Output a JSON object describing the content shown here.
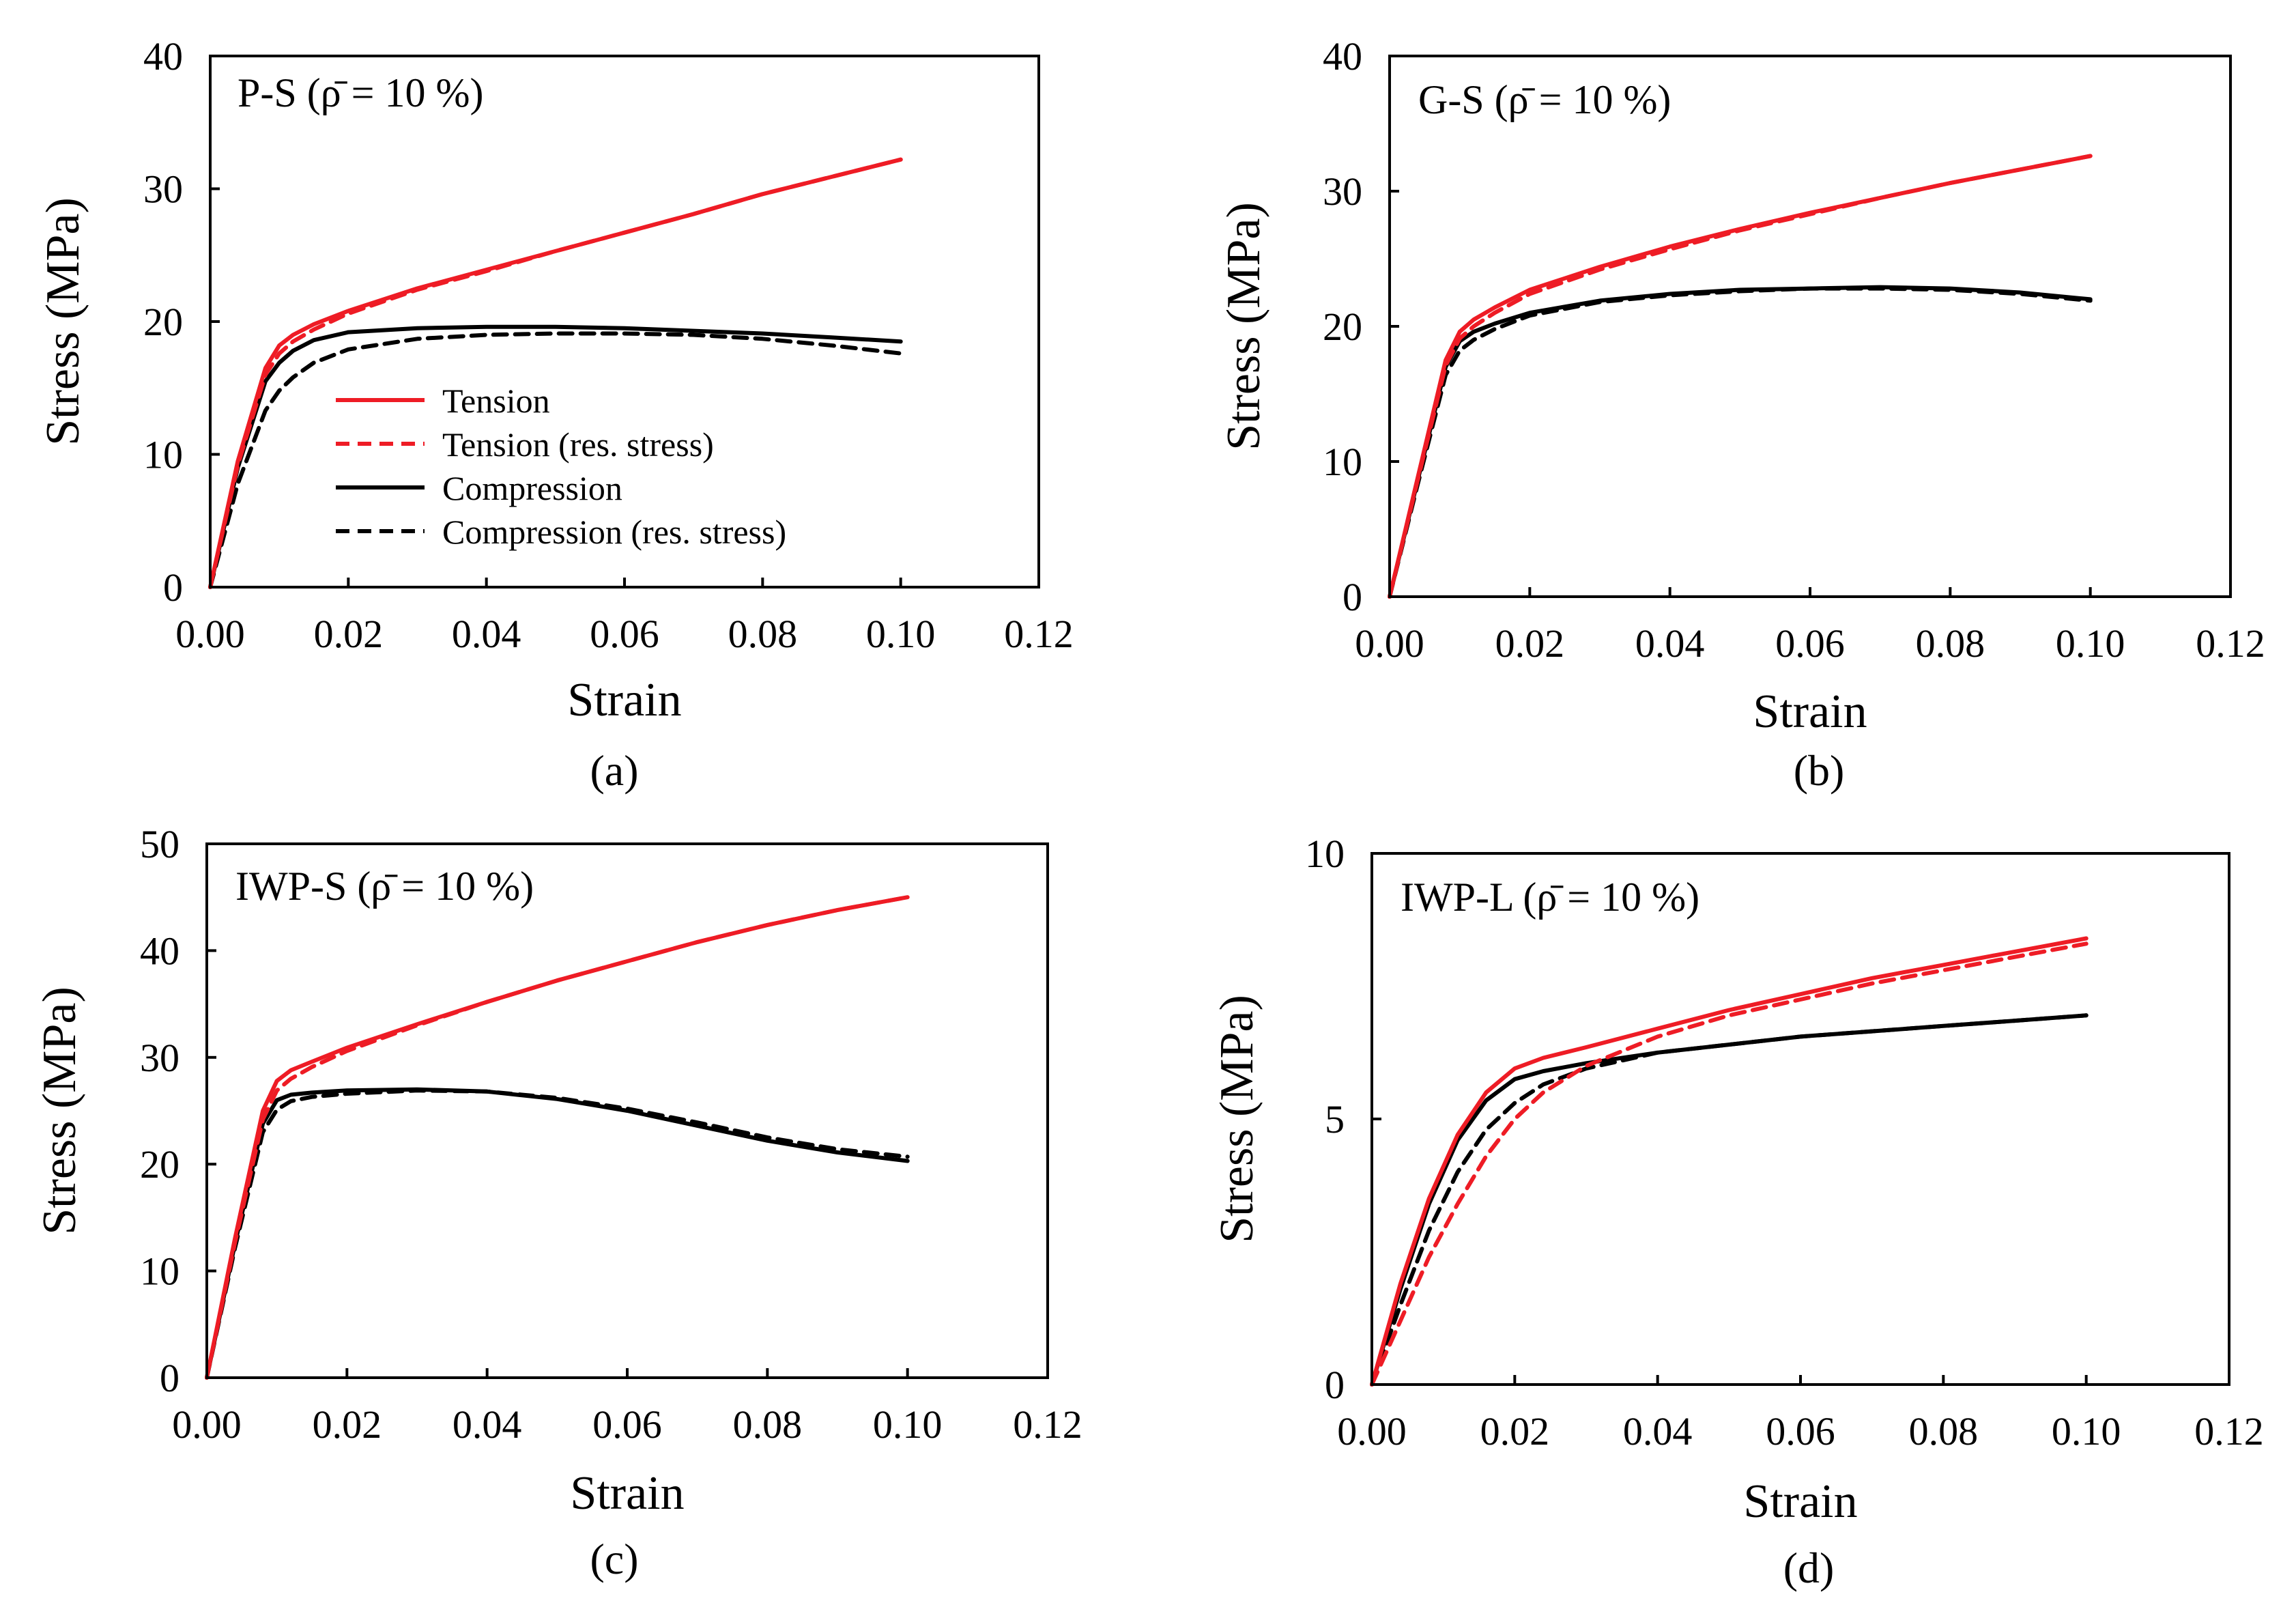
{
  "colors": {
    "tension": "#ee1c25",
    "compression": "#000000"
  },
  "legend_labels": [
    "Tension",
    "Tension (res. stress)",
    "Compression",
    "Compression (res. stress)"
  ],
  "chart_data": [
    {
      "type": "line",
      "panel": "a",
      "caption": "(a)",
      "title": "P-S (ρ̄ = 10 %)",
      "xlabel": "Strain",
      "ylabel": "Stress (MPa)",
      "xlim": [
        0,
        0.12
      ],
      "ylim": [
        0,
        40
      ],
      "xticks": [
        "0.00",
        "0.02",
        "0.04",
        "0.06",
        "0.08",
        "0.10",
        "0.12"
      ],
      "yticks": [
        "0",
        "10",
        "20",
        "30",
        "40"
      ],
      "legend": true,
      "legend_position": "center-left",
      "series": [
        {
          "name": "Tension",
          "color": "#ee1c25",
          "dash": "solid",
          "x": [
            0,
            0.004,
            0.008,
            0.01,
            0.012,
            0.015,
            0.02,
            0.03,
            0.04,
            0.05,
            0.06,
            0.07,
            0.08,
            0.09,
            0.1
          ],
          "y": [
            0,
            9.5,
            16.5,
            18.2,
            19.0,
            19.8,
            20.8,
            22.5,
            23.9,
            25.3,
            26.7,
            28.1,
            29.6,
            30.9,
            32.2
          ]
        },
        {
          "name": "Tension (res. stress)",
          "color": "#ee1c25",
          "dash": "dashed",
          "x": [
            0,
            0.004,
            0.008,
            0.01,
            0.012,
            0.015,
            0.02,
            0.03,
            0.04,
            0.05,
            0.06,
            0.07,
            0.08,
            0.09,
            0.1
          ],
          "y": [
            0,
            9.2,
            16.0,
            17.6,
            18.5,
            19.4,
            20.6,
            22.4,
            23.8,
            25.3,
            26.7,
            28.1,
            29.6,
            30.9,
            32.2
          ]
        },
        {
          "name": "Compression",
          "color": "#000000",
          "dash": "solid",
          "x": [
            0,
            0.004,
            0.008,
            0.01,
            0.012,
            0.015,
            0.02,
            0.03,
            0.04,
            0.05,
            0.06,
            0.07,
            0.08,
            0.09,
            0.1
          ],
          "y": [
            0,
            9.0,
            15.5,
            16.9,
            17.8,
            18.6,
            19.2,
            19.5,
            19.6,
            19.6,
            19.5,
            19.3,
            19.1,
            18.8,
            18.5
          ]
        },
        {
          "name": "Compression (res. stress)",
          "color": "#000000",
          "dash": "dashed",
          "x": [
            0,
            0.004,
            0.008,
            0.01,
            0.012,
            0.015,
            0.02,
            0.03,
            0.04,
            0.05,
            0.06,
            0.07,
            0.08,
            0.09,
            0.1
          ],
          "y": [
            0,
            7.8,
            13.3,
            14.8,
            15.8,
            16.9,
            17.9,
            18.7,
            19.0,
            19.1,
            19.1,
            19.0,
            18.7,
            18.2,
            17.6
          ]
        }
      ]
    },
    {
      "type": "line",
      "panel": "b",
      "caption": "(b)",
      "title": "G-S (ρ̄ = 10 %)",
      "xlabel": "Strain",
      "ylabel": "Stress (MPa)",
      "xlim": [
        0,
        0.12
      ],
      "ylim": [
        0,
        40
      ],
      "xticks": [
        "0.00",
        "0.02",
        "0.04",
        "0.06",
        "0.08",
        "0.10",
        "0.12"
      ],
      "yticks": [
        "0",
        "10",
        "20",
        "30",
        "40"
      ],
      "legend": false,
      "series": [
        {
          "name": "Tension",
          "color": "#ee1c25",
          "dash": "solid",
          "x": [
            0,
            0.004,
            0.008,
            0.01,
            0.012,
            0.015,
            0.02,
            0.03,
            0.04,
            0.05,
            0.06,
            0.07,
            0.08,
            0.09,
            0.1
          ],
          "y": [
            0,
            8.8,
            17.5,
            19.6,
            20.5,
            21.4,
            22.7,
            24.4,
            25.9,
            27.2,
            28.4,
            29.5,
            30.6,
            31.6,
            32.6
          ]
        },
        {
          "name": "Tension (res. stress)",
          "color": "#ee1c25",
          "dash": "dashed",
          "x": [
            0,
            0.004,
            0.008,
            0.01,
            0.012,
            0.015,
            0.02,
            0.03,
            0.04,
            0.05,
            0.06,
            0.07,
            0.08,
            0.09,
            0.1
          ],
          "y": [
            0,
            8.6,
            17.1,
            19.1,
            20.0,
            21.0,
            22.4,
            24.2,
            25.7,
            27.1,
            28.3,
            29.5,
            30.6,
            31.6,
            32.6
          ]
        },
        {
          "name": "Compression",
          "color": "#000000",
          "dash": "solid",
          "x": [
            0,
            0.004,
            0.008,
            0.01,
            0.012,
            0.015,
            0.02,
            0.03,
            0.04,
            0.05,
            0.06,
            0.07,
            0.08,
            0.09,
            0.1
          ],
          "y": [
            0,
            8.6,
            17.0,
            18.9,
            19.6,
            20.2,
            21.0,
            21.9,
            22.4,
            22.7,
            22.8,
            22.9,
            22.8,
            22.5,
            22.0
          ]
        },
        {
          "name": "Compression (res. stress)",
          "color": "#000000",
          "dash": "dashed",
          "x": [
            0,
            0.004,
            0.008,
            0.01,
            0.012,
            0.015,
            0.02,
            0.03,
            0.04,
            0.05,
            0.06,
            0.07,
            0.08,
            0.09,
            0.1
          ],
          "y": [
            0,
            8.3,
            16.4,
            18.2,
            19.0,
            19.8,
            20.8,
            21.8,
            22.3,
            22.6,
            22.8,
            22.8,
            22.7,
            22.4,
            21.9
          ]
        }
      ]
    },
    {
      "type": "line",
      "panel": "c",
      "caption": "(c)",
      "title": "IWP-S (ρ̄ = 10 %)",
      "xlabel": "Strain",
      "ylabel": "Stress (MPa)",
      "xlim": [
        0,
        0.12
      ],
      "ylim": [
        0,
        50
      ],
      "xticks": [
        "0.00",
        "0.02",
        "0.04",
        "0.06",
        "0.08",
        "0.10",
        "0.12"
      ],
      "yticks": [
        "0",
        "10",
        "20",
        "30",
        "40",
        "50"
      ],
      "legend": false,
      "series": [
        {
          "name": "Tension",
          "color": "#ee1c25",
          "dash": "solid",
          "x": [
            0,
            0.004,
            0.008,
            0.01,
            0.012,
            0.015,
            0.02,
            0.03,
            0.04,
            0.05,
            0.06,
            0.07,
            0.08,
            0.09,
            0.1
          ],
          "y": [
            0,
            13.0,
            25.0,
            27.8,
            28.8,
            29.6,
            30.9,
            33.1,
            35.2,
            37.2,
            39.0,
            40.8,
            42.4,
            43.8,
            45.0
          ]
        },
        {
          "name": "Tension (res. stress)",
          "color": "#ee1c25",
          "dash": "dashed",
          "x": [
            0,
            0.004,
            0.008,
            0.01,
            0.012,
            0.015,
            0.02,
            0.03,
            0.04,
            0.05,
            0.06,
            0.07,
            0.08,
            0.09,
            0.1
          ],
          "y": [
            0,
            12.6,
            24.2,
            26.9,
            28.0,
            29.1,
            30.6,
            33.0,
            35.2,
            37.2,
            39.0,
            40.8,
            42.4,
            43.8,
            45.0
          ]
        },
        {
          "name": "Compression",
          "color": "#000000",
          "dash": "solid",
          "x": [
            0,
            0.004,
            0.008,
            0.01,
            0.012,
            0.015,
            0.02,
            0.03,
            0.04,
            0.05,
            0.06,
            0.07,
            0.08,
            0.09,
            0.1
          ],
          "y": [
            0,
            12.5,
            23.8,
            26.0,
            26.5,
            26.7,
            26.9,
            27.0,
            26.8,
            26.1,
            25.0,
            23.6,
            22.2,
            21.1,
            20.3
          ]
        },
        {
          "name": "Compression (res. stress)",
          "color": "#000000",
          "dash": "dashed",
          "x": [
            0,
            0.004,
            0.008,
            0.01,
            0.012,
            0.015,
            0.02,
            0.03,
            0.04,
            0.05,
            0.06,
            0.07,
            0.08,
            0.09,
            0.1
          ],
          "y": [
            0,
            12.1,
            23.0,
            25.1,
            25.9,
            26.3,
            26.6,
            26.9,
            26.8,
            26.2,
            25.2,
            23.9,
            22.5,
            21.4,
            20.7
          ]
        }
      ]
    },
    {
      "type": "line",
      "panel": "d",
      "caption": "(d)",
      "title": "IWP-L (ρ̄ = 10 %)",
      "xlabel": "Strain",
      "ylabel": "Stress (MPa)",
      "xlim": [
        0,
        0.12
      ],
      "ylim": [
        0,
        10
      ],
      "xticks": [
        "0.00",
        "0.02",
        "0.04",
        "0.06",
        "0.08",
        "0.10",
        "0.12"
      ],
      "yticks": [
        "0",
        "5",
        "10"
      ],
      "legend": false,
      "series": [
        {
          "name": "Tension",
          "color": "#ee1c25",
          "dash": "solid",
          "x": [
            0,
            0.004,
            0.008,
            0.012,
            0.016,
            0.02,
            0.024,
            0.03,
            0.04,
            0.05,
            0.06,
            0.07,
            0.08,
            0.09,
            0.1
          ],
          "y": [
            0,
            1.9,
            3.5,
            4.7,
            5.5,
            5.95,
            6.15,
            6.35,
            6.7,
            7.05,
            7.35,
            7.65,
            7.9,
            8.15,
            8.4
          ]
        },
        {
          "name": "Tension (res. stress)",
          "color": "#ee1c25",
          "dash": "dashed",
          "x": [
            0,
            0.004,
            0.008,
            0.012,
            0.016,
            0.02,
            0.024,
            0.03,
            0.04,
            0.05,
            0.06,
            0.07,
            0.08,
            0.09,
            0.1
          ],
          "y": [
            0,
            1.2,
            2.4,
            3.4,
            4.3,
            5.0,
            5.5,
            6.0,
            6.55,
            6.95,
            7.25,
            7.55,
            7.8,
            8.05,
            8.3
          ]
        },
        {
          "name": "Compression",
          "color": "#000000",
          "dash": "solid",
          "x": [
            0,
            0.004,
            0.008,
            0.012,
            0.016,
            0.02,
            0.024,
            0.03,
            0.04,
            0.05,
            0.06,
            0.07,
            0.08,
            0.09,
            0.1
          ],
          "y": [
            0,
            1.8,
            3.4,
            4.6,
            5.35,
            5.75,
            5.9,
            6.05,
            6.25,
            6.4,
            6.55,
            6.65,
            6.75,
            6.85,
            6.95
          ]
        },
        {
          "name": "Compression (res. stress)",
          "color": "#000000",
          "dash": "dashed",
          "x": [
            0,
            0.004,
            0.008,
            0.012,
            0.016,
            0.02,
            0.024,
            0.03,
            0.04,
            0.05,
            0.06,
            0.07,
            0.08,
            0.09,
            0.1
          ],
          "y": [
            0,
            1.5,
            2.9,
            4.0,
            4.8,
            5.3,
            5.65,
            5.95,
            6.25,
            6.4,
            6.55,
            6.65,
            6.75,
            6.85,
            6.95
          ]
        }
      ]
    }
  ]
}
